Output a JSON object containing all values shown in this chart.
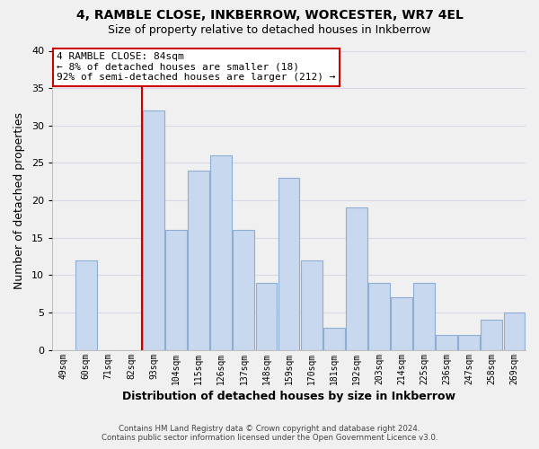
{
  "title": "4, RAMBLE CLOSE, INKBERROW, WORCESTER, WR7 4EL",
  "subtitle": "Size of property relative to detached houses in Inkberrow",
  "xlabel": "Distribution of detached houses by size in Inkberrow",
  "ylabel": "Number of detached properties",
  "footer_line1": "Contains HM Land Registry data © Crown copyright and database right 2024.",
  "footer_line2": "Contains public sector information licensed under the Open Government Licence v3.0.",
  "bar_labels": [
    "49sqm",
    "60sqm",
    "71sqm",
    "82sqm",
    "93sqm",
    "104sqm",
    "115sqm",
    "126sqm",
    "137sqm",
    "148sqm",
    "159sqm",
    "170sqm",
    "181sqm",
    "192sqm",
    "203sqm",
    "214sqm",
    "225sqm",
    "236sqm",
    "247sqm",
    "258sqm",
    "269sqm"
  ],
  "bar_values": [
    0,
    12,
    0,
    0,
    32,
    16,
    24,
    26,
    16,
    9,
    23,
    12,
    3,
    19,
    9,
    7,
    9,
    2,
    2,
    4,
    5
  ],
  "bar_color": "#c8d8ee",
  "bar_edge_color": "#8eadd4",
  "highlight_line_index": 4,
  "highlight_line_color": "#cc0000",
  "annotation_text": "4 RAMBLE CLOSE: 84sqm\n← 8% of detached houses are smaller (18)\n92% of semi-detached houses are larger (212) →",
  "annotation_box_color": "#ffffff",
  "annotation_box_edge_color": "#cc0000",
  "ylim": [
    0,
    40
  ],
  "yticks": [
    0,
    5,
    10,
    15,
    20,
    25,
    30,
    35,
    40
  ],
  "background_color": "#f0f0f0",
  "plot_bg_color": "#f0f0f0",
  "grid_color": "#d8d8e8"
}
